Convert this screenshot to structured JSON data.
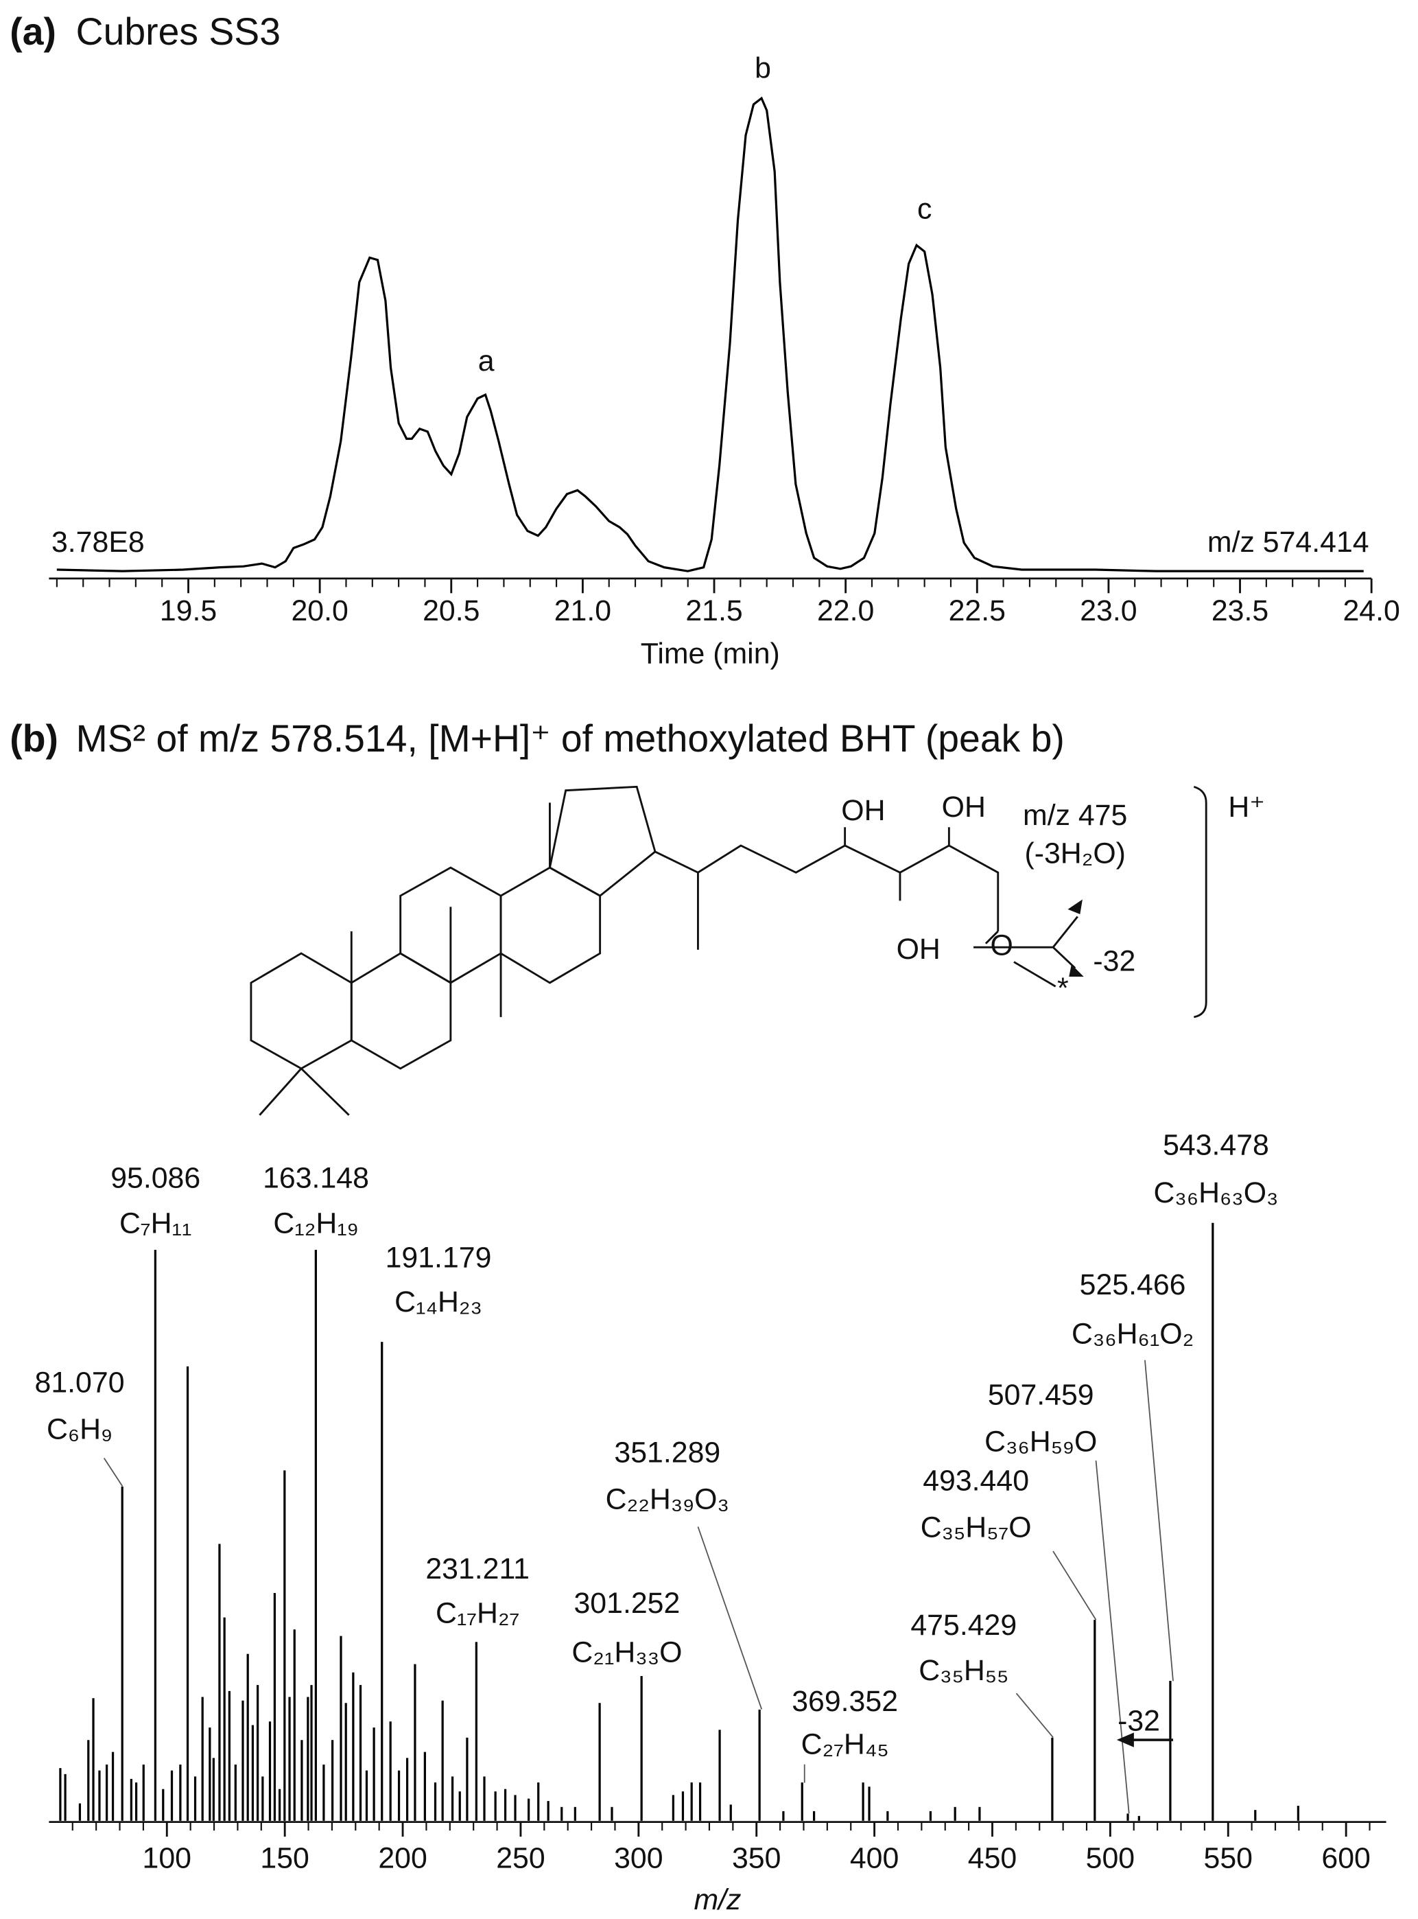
{
  "chart_data": [
    {
      "type": "line",
      "panel_label": "(a)",
      "title": "Cubres SS3",
      "xlabel": "Time (min)",
      "intensity_label": "3.78E8",
      "trace_label": "m/z 574.414",
      "peak_labels": [
        "a",
        "b",
        "c"
      ],
      "xlim": [
        18.97,
        24.0
      ],
      "ylim": [
        0,
        100
      ],
      "color": "#000000",
      "xticks": [
        19.5,
        {
          "value": 20,
          "label": "20.0"
        },
        20.5,
        {
          "value": 21,
          "label": "21.0"
        },
        21.5,
        {
          "value": 22,
          "label": "22.0"
        },
        22.5,
        {
          "value": 23,
          "label": "23.0"
        },
        23.5,
        {
          "value": 24,
          "label": "24.0"
        }
      ],
      "xticks_minor": [
        19.0,
        19.1,
        19.2,
        19.3,
        19.4,
        19.6,
        19.7,
        19.8,
        19.9,
        20.1,
        20.2,
        20.3,
        20.4,
        20.6,
        20.7,
        20.8,
        20.9,
        21.1,
        21.2,
        21.3,
        21.4,
        21.6,
        21.7,
        21.8,
        21.9,
        22.1,
        22.2,
        22.3,
        22.4,
        22.6,
        22.7,
        22.8,
        22.9,
        23.1,
        23.2,
        23.3,
        23.4,
        23.6,
        23.7,
        23.8,
        23.9
      ],
      "x": [
        19.0,
        19.25,
        19.48,
        19.62,
        19.71,
        19.78,
        19.83,
        19.87,
        19.9,
        19.94,
        19.98,
        20.01,
        20.04,
        20.08,
        20.12,
        20.15,
        20.19,
        20.22,
        20.25,
        20.27,
        20.3,
        20.33,
        20.35,
        20.38,
        20.41,
        20.44,
        20.47,
        20.5,
        20.53,
        20.56,
        20.6,
        20.63,
        20.65,
        20.68,
        20.72,
        20.75,
        20.79,
        20.83,
        20.86,
        20.9,
        20.94,
        20.98,
        21.01,
        21.05,
        21.1,
        21.14,
        21.17,
        21.2,
        21.25,
        21.31,
        21.4,
        21.46,
        21.49,
        21.52,
        21.56,
        21.59,
        21.62,
        21.65,
        21.68,
        21.7,
        21.73,
        21.75,
        21.78,
        21.81,
        21.85,
        21.88,
        21.93,
        21.98,
        22.02,
        22.07,
        22.11,
        22.14,
        22.17,
        22.21,
        22.24,
        22.27,
        22.3,
        22.33,
        22.36,
        22.38,
        22.42,
        22.45,
        22.49,
        22.56,
        22.67,
        22.95,
        23.18,
        23.97
      ],
      "values": [
        0.3,
        0,
        0.3,
        0.8,
        1.0,
        1.6,
        0.8,
        2.1,
        4.9,
        5.7,
        6.7,
        9.3,
        15.8,
        27.5,
        45.6,
        61.1,
        66.3,
        65.8,
        57.2,
        43.0,
        31.3,
        28.0,
        28.0,
        30.1,
        29.5,
        25.4,
        22.3,
        20.5,
        24.9,
        32.6,
        36.5,
        37.3,
        33.9,
        27.5,
        18.4,
        11.9,
        8.5,
        7.5,
        9.3,
        13.2,
        16.3,
        17.1,
        15.8,
        13.7,
        10.6,
        9.3,
        7.8,
        5.4,
        2.1,
        0.8,
        0,
        0.8,
        6.7,
        22.3,
        48.2,
        74.1,
        92.2,
        98.7,
        100,
        97.4,
        84.5,
        61.1,
        37.8,
        18.4,
        8.0,
        2.8,
        1.0,
        0.5,
        1.0,
        2.8,
        8.0,
        19.7,
        35.2,
        53.4,
        65.0,
        68.9,
        67.6,
        58.5,
        43.0,
        26.2,
        13.2,
        6.0,
        2.8,
        1.0,
        0.3,
        0.3,
        0,
        0
      ]
    },
    {
      "type": "stem",
      "panel_label": "(b)",
      "title": "MS² of m/z 578.514, [M+H]⁺ of methoxylated BHT (peak b)",
      "xlabel": "m/z",
      "shift_label": "-32",
      "xlim": [
        50,
        617
      ],
      "ylim": [
        0,
        100
      ],
      "color": "#000000",
      "xticks": [
        100,
        150,
        200,
        250,
        300,
        350,
        400,
        450,
        500,
        550,
        600
      ],
      "xticks_minor": [
        60,
        70,
        80,
        90,
        110,
        120,
        130,
        140,
        160,
        170,
        180,
        190,
        210,
        220,
        230,
        240,
        260,
        270,
        280,
        290,
        310,
        320,
        330,
        340,
        360,
        370,
        380,
        390,
        410,
        420,
        430,
        440,
        460,
        470,
        480,
        490,
        510,
        520,
        530,
        540,
        560,
        570,
        580,
        590,
        610
      ],
      "x": [
        54.8,
        56.9,
        63.1,
        66.7,
        68.8,
        71.4,
        74.5,
        77.1,
        81.07,
        84.9,
        87.0,
        90.1,
        95.086,
        98.4,
        102.1,
        105.7,
        108.8,
        112.0,
        115.1,
        118.2,
        119.8,
        122.3,
        124.4,
        126.5,
        129.1,
        132.2,
        134.3,
        136.4,
        138.5,
        140.6,
        143.7,
        145.7,
        147.8,
        149.9,
        152.0,
        154.1,
        157.2,
        159.8,
        161.3,
        163.148,
        166.5,
        170.2,
        173.8,
        175.9,
        179.0,
        182.1,
        184.7,
        187.8,
        191.179,
        194.8,
        198.4,
        201.9,
        205.2,
        209.4,
        213.8,
        216.9,
        221.1,
        224.2,
        227.3,
        231.211,
        234.6,
        239.3,
        243.5,
        247.7,
        253.4,
        257.5,
        261.7,
        267.4,
        273.1,
        283.5,
        288.7,
        301.252,
        314.7,
        318.8,
        322.5,
        326.1,
        334.4,
        339.1,
        351.289,
        361.4,
        369.352,
        374.4,
        395.2,
        397.8,
        405.6,
        423.8,
        434.2,
        444.6,
        475.429,
        493.44,
        507.459,
        512.2,
        525.466,
        543.478,
        561.5,
        579.7
      ],
      "values": [
        8.8,
        7.8,
        2.9,
        13.5,
        20.5,
        8.4,
        9.4,
        11.5,
        55.9,
        7.0,
        6.4,
        9.4,
        95.5,
        5.3,
        8.4,
        9.4,
        76.0,
        7.4,
        20.7,
        15.6,
        10.5,
        46.3,
        34.0,
        21.7,
        9.4,
        20.1,
        27.9,
        16.0,
        22.7,
        7.4,
        16.6,
        38.1,
        5.3,
        58.6,
        20.7,
        32.0,
        13.5,
        20.7,
        22.7,
        95.5,
        9.4,
        13.5,
        30.9,
        19.7,
        24.8,
        22.7,
        8.4,
        15.6,
        80.1,
        16.6,
        8.4,
        10.5,
        26.2,
        11.5,
        6.4,
        20.1,
        7.4,
        4.9,
        13.9,
        29.9,
        7.4,
        4.9,
        5.3,
        4.3,
        3.7,
        6.4,
        3.3,
        2.3,
        2.3,
        19.7,
        2.3,
        24.2,
        4.3,
        4.9,
        6.4,
        6.4,
        15.2,
        2.7,
        18.6,
        1.6,
        6.4,
        1.6,
        6.4,
        5.7,
        1.6,
        1.6,
        2.3,
        2.3,
        13.9,
        33.6,
        1.2,
        0.8,
        23.4,
        100,
        1.8,
        2.5
      ],
      "annotations": [
        {
          "text": "95.086",
          "formula": "C₇H₁₁"
        },
        {
          "text": "163.148",
          "formula": "C₁₂H₁₉"
        },
        {
          "text": "191.179",
          "formula": "C₁₄H₂₃"
        },
        {
          "text": "81.070",
          "formula": "C₆H₉"
        },
        {
          "text": "231.211",
          "formula": "C₁₇H₂₇"
        },
        {
          "text": "301.252",
          "formula": "C₂₁H₃₃O"
        },
        {
          "text": "351.289",
          "formula": "C₂₂H₃₉O₃"
        },
        {
          "text": "369.352",
          "formula": "C₂₇H₄₅"
        },
        {
          "text": "475.429",
          "formula": "C₃₅H₅₅"
        },
        {
          "text": "493.440",
          "formula": "C₃₅H₅₇O"
        },
        {
          "text": "507.459",
          "formula": "C₃₆H₅₉O"
        },
        {
          "text": "525.466",
          "formula": "C₃₆H₆₁O₂"
        },
        {
          "text": "543.478",
          "formula": "C₃₆H₆₃O₃"
        }
      ]
    }
  ],
  "structure": {
    "labels": [
      "OH",
      "OH",
      "OH",
      "O",
      "*",
      "m/z 475",
      "(-3H₂O)",
      "-32",
      "H⁺"
    ]
  }
}
